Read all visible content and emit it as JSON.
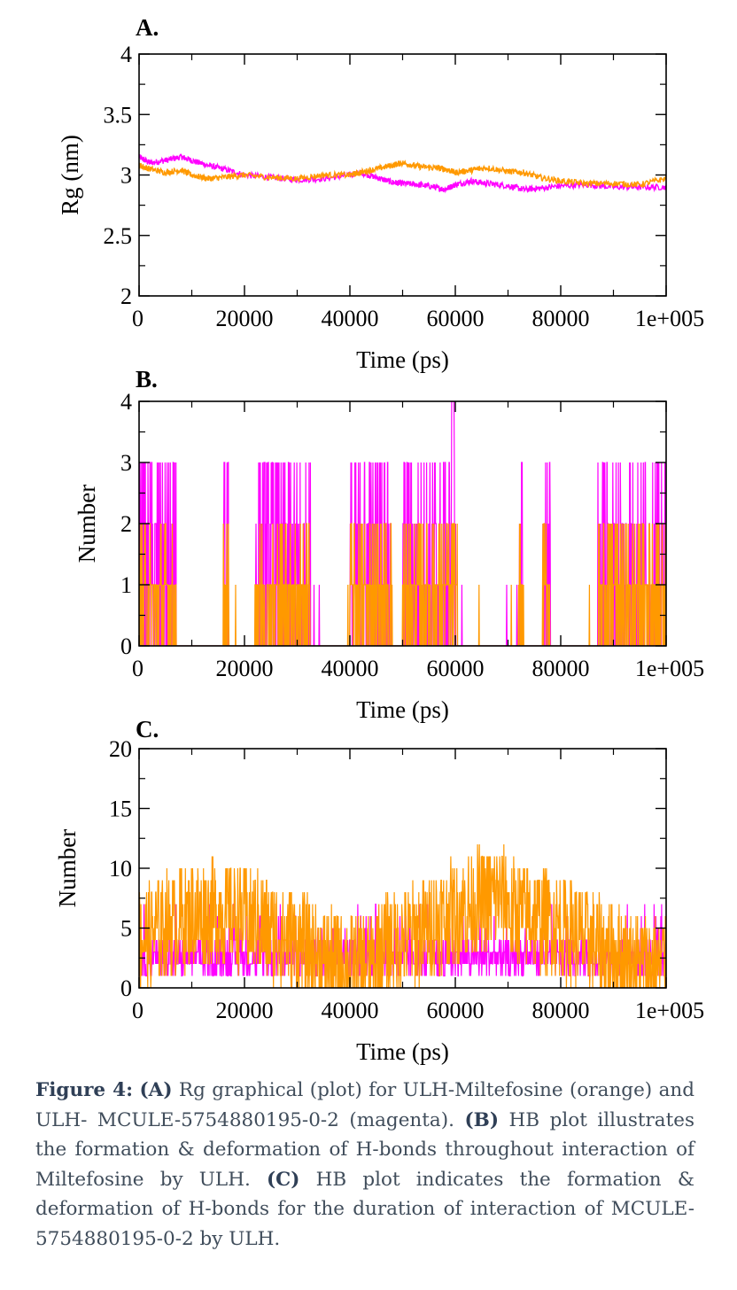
{
  "chart_data": [
    {
      "panel_label": "A.",
      "type": "line",
      "xlabel": "Time (ps)",
      "ylabel": "Rg (nm)",
      "xlim": [
        0,
        100000
      ],
      "ylim": [
        2,
        4
      ],
      "xticks": [
        0,
        20000,
        40000,
        60000,
        80000,
        100000
      ],
      "xtick_labels": [
        "0",
        "20000",
        "40000",
        "60000",
        "80000",
        "1e+005"
      ],
      "yticks": [
        2,
        2.5,
        3,
        3.5,
        4
      ],
      "ytick_labels": [
        "2",
        "2.5",
        "3",
        "3.5",
        "4"
      ],
      "grid": false,
      "series": [
        {
          "color": "#ff00ff",
          "x": [
            0,
            2000,
            5000,
            8000,
            10000,
            13000,
            16000,
            20000,
            25000,
            30000,
            35000,
            40000,
            42000,
            45000,
            48000,
            50000,
            53000,
            56000,
            58000,
            60000,
            63000,
            66000,
            70000,
            73000,
            76000,
            80000,
            85000,
            90000,
            95000,
            100000
          ],
          "y": [
            3.15,
            3.1,
            3.12,
            3.15,
            3.12,
            3.08,
            3.05,
            3.0,
            2.98,
            2.96,
            2.97,
            3.0,
            3.02,
            2.98,
            2.94,
            2.93,
            2.92,
            2.9,
            2.88,
            2.92,
            2.95,
            2.93,
            2.91,
            2.88,
            2.89,
            2.91,
            2.92,
            2.9,
            2.9,
            2.9
          ]
        },
        {
          "color": "#ff9900",
          "x": [
            0,
            2000,
            5000,
            8000,
            10000,
            13000,
            16000,
            20000,
            25000,
            30000,
            35000,
            40000,
            42000,
            45000,
            48000,
            50000,
            53000,
            56000,
            58000,
            60000,
            63000,
            66000,
            70000,
            73000,
            76000,
            80000,
            85000,
            90000,
            95000,
            100000
          ],
          "y": [
            3.08,
            3.05,
            3.02,
            3.04,
            3.0,
            2.97,
            2.98,
            3.0,
            2.98,
            2.97,
            3.0,
            3.0,
            3.02,
            3.05,
            3.08,
            3.1,
            3.07,
            3.06,
            3.05,
            3.02,
            3.04,
            3.06,
            3.03,
            3.02,
            2.98,
            2.95,
            2.93,
            2.93,
            2.92,
            2.97
          ]
        }
      ]
    },
    {
      "panel_label": "B.",
      "type": "line",
      "xlabel": "Time (ps)",
      "ylabel": "Number",
      "xlim": [
        0,
        100000
      ],
      "ylim": [
        0,
        4
      ],
      "xticks": [
        0,
        20000,
        40000,
        60000,
        80000,
        100000
      ],
      "xtick_labels": [
        "0",
        "20000",
        "40000",
        "60000",
        "80000",
        "1e+005"
      ],
      "yticks": [
        0,
        1,
        2,
        3,
        4
      ],
      "ytick_labels": [
        "0",
        "1",
        "2",
        "3",
        "4"
      ],
      "grid": false,
      "series": [
        {
          "color": "#ff00ff",
          "style": "hbond-noise",
          "max": [
            3,
            3,
            0,
            1,
            3,
            0,
            3,
            0,
            3,
            4,
            0,
            0,
            3,
            0,
            3,
            3
          ]
        },
        {
          "color": "#ff9900",
          "style": "hbond-noise",
          "max": [
            2,
            2,
            1,
            1,
            2,
            1,
            2,
            1,
            2,
            2,
            0,
            1,
            2,
            1,
            2,
            2
          ]
        }
      ],
      "active_ranges": [
        [
          0,
          7000
        ],
        [
          16000,
          17000
        ],
        [
          22000,
          26000
        ],
        [
          26000,
          32500
        ],
        [
          40000,
          48000
        ],
        [
          50000,
          60500
        ],
        [
          72000,
          73000
        ],
        [
          76500,
          78000
        ],
        [
          87000,
          100000
        ]
      ]
    },
    {
      "panel_label": "C.",
      "type": "line",
      "xlabel": "Time (ps)",
      "ylabel": "Number",
      "xlim": [
        0,
        100000
      ],
      "ylim": [
        0,
        20
      ],
      "xticks": [
        0,
        20000,
        40000,
        60000,
        80000,
        100000
      ],
      "xtick_labels": [
        "0",
        "20000",
        "40000",
        "60000",
        "80000",
        "1e+005"
      ],
      "yticks": [
        0,
        5,
        10,
        15,
        20
      ],
      "ytick_labels": [
        "0",
        "5",
        "10",
        "15",
        "20"
      ],
      "grid": false,
      "series": [
        {
          "color": "#ff00ff",
          "mean": 2,
          "max": 8
        },
        {
          "color": "#ff9900",
          "mean": 5,
          "max": 13
        }
      ]
    }
  ],
  "caption": {
    "figure_label": "Figure 4:",
    "a_label": "(A)",
    "a_text": "Rg graphical (plot) for ULH-Miltefosine (orange) and ULH- MCULE-5754880195-0-2 (magenta).",
    "b_label": "(B)",
    "b_text": "HB plot illustrates the formation & deformation of H-bonds throughout interaction of Miltefosine by ULH.",
    "c_label": "(C)",
    "c_text": "HB plot indicates the formation & deformation of H-bonds for the duration of interaction of MCULE-5754880195-0-2 by ULH."
  }
}
